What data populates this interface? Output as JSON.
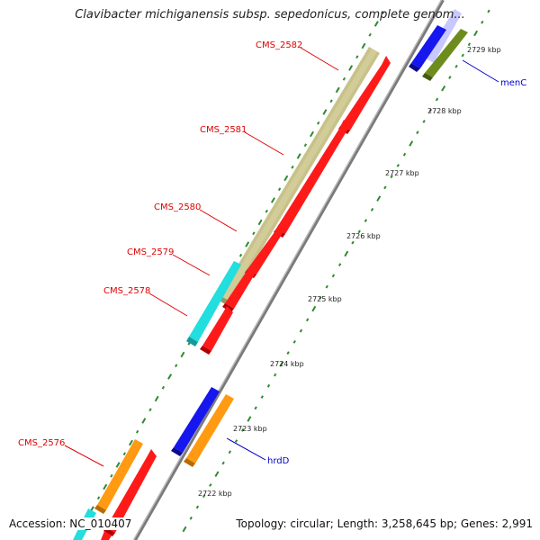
{
  "title": "Clavibacter michiganensis subsp. sepedonicus, complete genom...",
  "footer": {
    "accession": "Accession: NC_010407",
    "summary": "Topology: circular; Length: 3,258,645 bp; Genes: 2,991"
  },
  "colors": {
    "background": "#ffffff",
    "backbone": "#8c8c8c",
    "tick": "#2e8b2e",
    "cds_red": "#ff1a1a",
    "gene_khaki": "#c8c28a",
    "gene_cyan": "#22dede",
    "gene_orange": "#ff9a12",
    "gene_blue": "#1616ee",
    "gene_olive": "#6e8c1e",
    "gene_lavender": "#c8c8ff",
    "label_red": "#e00000",
    "label_blue": "#0000cc"
  },
  "kbp_ticks": [
    {
      "label": "2722 kbp"
    },
    {
      "label": "2723 kbp"
    },
    {
      "label": "2724 kbp"
    },
    {
      "label": "2725 kbp"
    },
    {
      "label": "2726 kbp"
    },
    {
      "label": "2727 kbp"
    },
    {
      "label": "2728 kbp"
    },
    {
      "label": "2729 kbp"
    }
  ],
  "gene_labels": [
    {
      "text": "CMS_2582",
      "color": "red"
    },
    {
      "text": "CMS_2581",
      "color": "red"
    },
    {
      "text": "CMS_2580",
      "color": "red"
    },
    {
      "text": "CMS_2579",
      "color": "red"
    },
    {
      "text": "CMS_2578",
      "color": "red"
    },
    {
      "text": "CMS_2576",
      "color": "red"
    },
    {
      "text": "hrdD",
      "color": "blue"
    },
    {
      "text": "menC",
      "color": "blue"
    }
  ]
}
